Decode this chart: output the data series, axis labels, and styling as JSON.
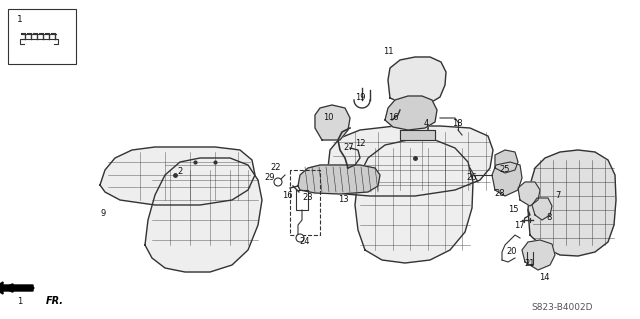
{
  "bg_color": "#ffffff",
  "fig_width": 6.4,
  "fig_height": 3.19,
  "dpi": 100,
  "code_text": "S823-B4002D",
  "line_color": "#333333",
  "text_color": "#111111"
}
